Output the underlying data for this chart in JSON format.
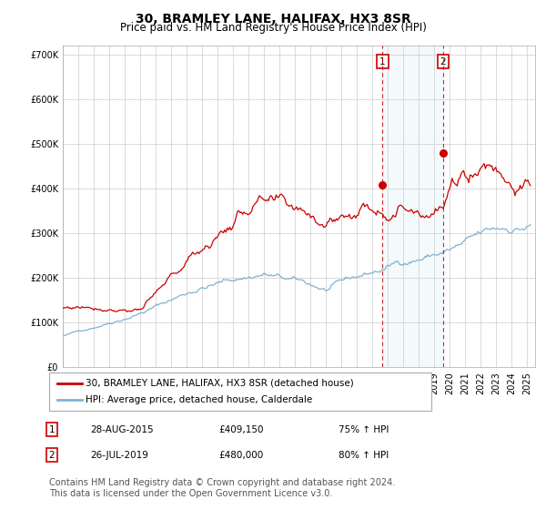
{
  "title": "30, BRAMLEY LANE, HALIFAX, HX3 8SR",
  "subtitle": "Price paid vs. HM Land Registry's House Price Index (HPI)",
  "title_fontsize": 10,
  "subtitle_fontsize": 8.5,
  "legend_line1": "30, BRAMLEY LANE, HALIFAX, HX3 8SR (detached house)",
  "legend_line2": "HPI: Average price, detached house, Calderdale",
  "red_color": "#cc0000",
  "blue_color": "#7fb3d3",
  "annotation1_date": "28-AUG-2015",
  "annotation1_price": "£409,150",
  "annotation1_hpi": "75% ↑ HPI",
  "annotation1_year": 2015.65,
  "annotation1_value": 409150,
  "annotation2_date": "26-JUL-2019",
  "annotation2_price": "£480,000",
  "annotation2_hpi": "80% ↑ HPI",
  "annotation2_year": 2019.55,
  "annotation2_value": 480000,
  "ylim": [
    0,
    720000
  ],
  "yticks": [
    0,
    100000,
    200000,
    300000,
    400000,
    500000,
    600000,
    700000
  ],
  "xlim_start": 1995.0,
  "xlim_end": 2025.5,
  "footer": "Contains HM Land Registry data © Crown copyright and database right 2024.\nThis data is licensed under the Open Government Licence v3.0.",
  "footer_fontsize": 7
}
